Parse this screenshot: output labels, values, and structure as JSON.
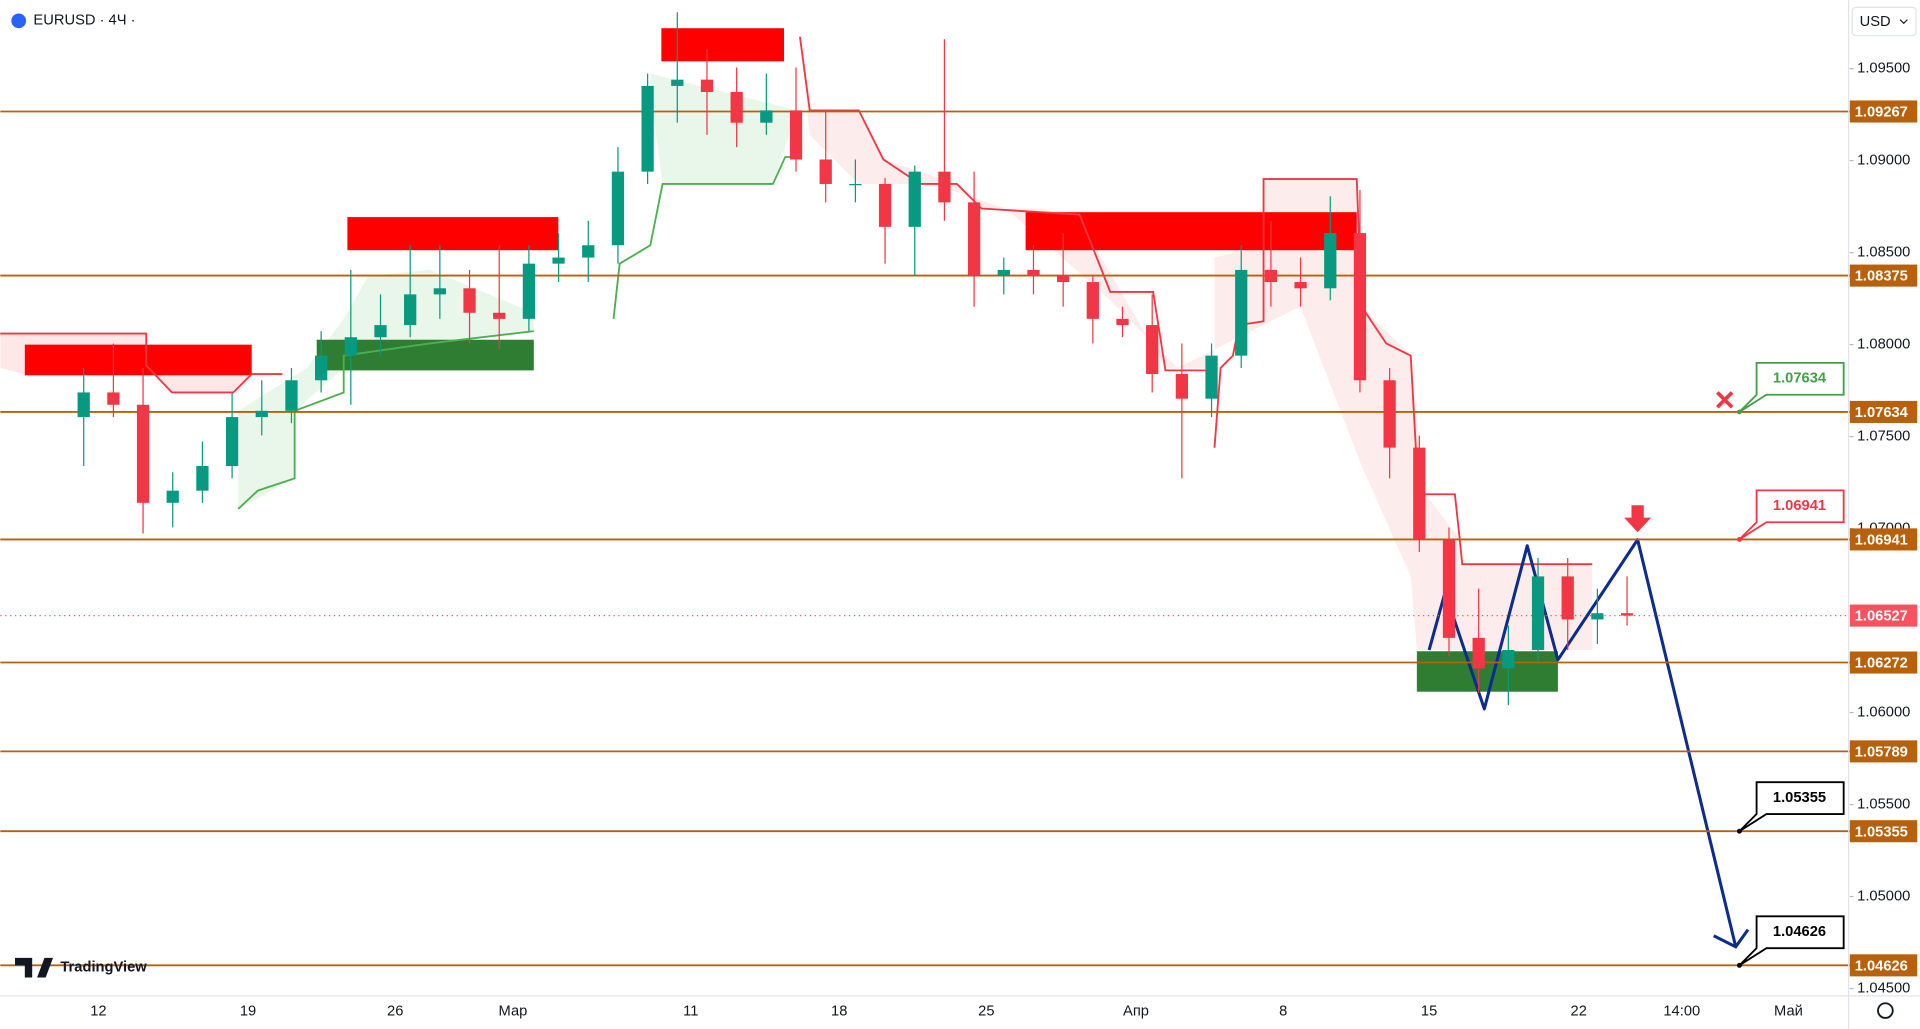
{
  "chart_data": {
    "type": "candlestick",
    "symbol": "EURUSD · 4Ч ·",
    "currency": "USD",
    "brand": "TradingView",
    "time_labels": [
      "12",
      "19",
      "26",
      "Мар",
      "11",
      "18",
      "25",
      "Апр",
      "8",
      "15",
      "22",
      "14:00",
      "Май"
    ],
    "open": [
      1.07606,
      1.0774,
      1.07673,
      1.0714,
      1.07206,
      1.0734,
      1.07606,
      1.0764,
      1.07806,
      1.0794,
      1.0804,
      1.08106,
      1.08273,
      1.08306,
      1.08173,
      1.0814,
      1.0844,
      1.08473,
      1.0854,
      1.0894,
      1.09406,
      1.0944,
      1.09373,
      1.09206,
      1.09273,
      1.09006,
      1.08873,
      1.08873,
      1.0864,
      1.0894,
      1.08773,
      1.08373,
      1.08406,
      1.08373,
      1.0834,
      1.0814,
      1.08106,
      1.0784,
      1.07706,
      1.0794,
      1.08406,
      1.0834,
      1.08306,
      1.08606,
      1.07806,
      1.0744,
      1.0694,
      1.06406,
      1.0624,
      1.0634,
      1.0674,
      1.06506,
      1.0654
    ],
    "high": [
      1.07873,
      1.08006,
      1.07873,
      1.07306,
      1.07473,
      1.0774,
      1.07806,
      1.07873,
      1.08073,
      1.08406,
      1.08273,
      1.0854,
      1.0854,
      1.08406,
      1.0854,
      1.0854,
      1.08606,
      1.08673,
      1.09073,
      1.09473,
      1.09806,
      1.09606,
      1.09506,
      1.09473,
      1.09506,
      1.09273,
      1.09006,
      1.08906,
      1.08973,
      1.0966,
      1.0894,
      1.08473,
      1.0854,
      1.08606,
      1.08373,
      1.08206,
      1.08273,
      1.08006,
      1.08006,
      1.0854,
      1.08673,
      1.08473,
      1.08806,
      1.0884,
      1.07873,
      1.07506,
      1.07006,
      1.06673,
      1.06473,
      1.0684,
      1.0684,
      1.06673,
      1.0674
    ],
    "low": [
      1.0734,
      1.07606,
      1.06973,
      1.07006,
      1.0714,
      1.07273,
      1.07506,
      1.07573,
      1.0774,
      1.07673,
      1.0794,
      1.0804,
      1.0814,
      1.08006,
      1.07973,
      1.08073,
      1.0834,
      1.0834,
      1.0844,
      1.08873,
      1.09206,
      1.0914,
      1.09073,
      1.0914,
      1.0894,
      1.08773,
      1.08773,
      1.0844,
      1.08373,
      1.08673,
      1.08206,
      1.08273,
      1.08273,
      1.08206,
      1.08006,
      1.0804,
      1.0774,
      1.07273,
      1.07606,
      1.07873,
      1.08206,
      1.08206,
      1.0824,
      1.0774,
      1.07273,
      1.06873,
      1.06306,
      1.06106,
      1.0604,
      1.06273,
      1.0634,
      1.06373,
      1.06473
    ],
    "close": [
      1.0774,
      1.07673,
      1.0714,
      1.07206,
      1.0734,
      1.07606,
      1.0764,
      1.07806,
      1.0794,
      1.0804,
      1.08106,
      1.08273,
      1.08306,
      1.08173,
      1.0814,
      1.0844,
      1.08473,
      1.0854,
      1.0894,
      1.09406,
      1.0944,
      1.09373,
      1.09206,
      1.09273,
      1.09006,
      1.08873,
      1.08873,
      1.0864,
      1.0894,
      1.08773,
      1.08373,
      1.08406,
      1.08373,
      1.0834,
      1.0814,
      1.08106,
      1.0784,
      1.07706,
      1.0794,
      1.08406,
      1.0834,
      1.08306,
      1.08606,
      1.07806,
      1.0744,
      1.0694,
      1.06406,
      1.0624,
      1.0634,
      1.0674,
      1.06506,
      1.0654,
      1.06527
    ],
    "up_color": "#089981",
    "down_color": "#f23645",
    "ylim": [
      1.0446,
      1.09873
    ],
    "yticks": [
      {
        "value": 1.095,
        "label": "1.09500"
      },
      {
        "value": 1.09,
        "label": "1.09000"
      },
      {
        "value": 1.085,
        "label": "1.08500"
      },
      {
        "value": 1.08,
        "label": "1.08000"
      },
      {
        "value": 1.075,
        "label": "1.07500"
      },
      {
        "value": 1.07,
        "label": "1.07000"
      },
      {
        "value": 1.06,
        "label": "1.06000"
      },
      {
        "value": 1.055,
        "label": "1.05500"
      },
      {
        "value": 1.05,
        "label": "1.05000"
      },
      {
        "value": 1.045,
        "label": "1.04500"
      }
    ],
    "levels": [
      1.09267,
      1.08375,
      1.07634,
      1.06941,
      1.06272,
      1.05789,
      1.05355,
      1.04626
    ],
    "level_color": "#b8600b",
    "last_price": 1.06527,
    "last_color": "#f7525f",
    "callouts": [
      {
        "value": 1.07634,
        "color": "#43a047"
      },
      {
        "value": 1.06941,
        "color": "#f23645"
      },
      {
        "value": 1.05355,
        "color": "#000000"
      },
      {
        "value": 1.04626,
        "color": "#000000"
      }
    ]
  }
}
